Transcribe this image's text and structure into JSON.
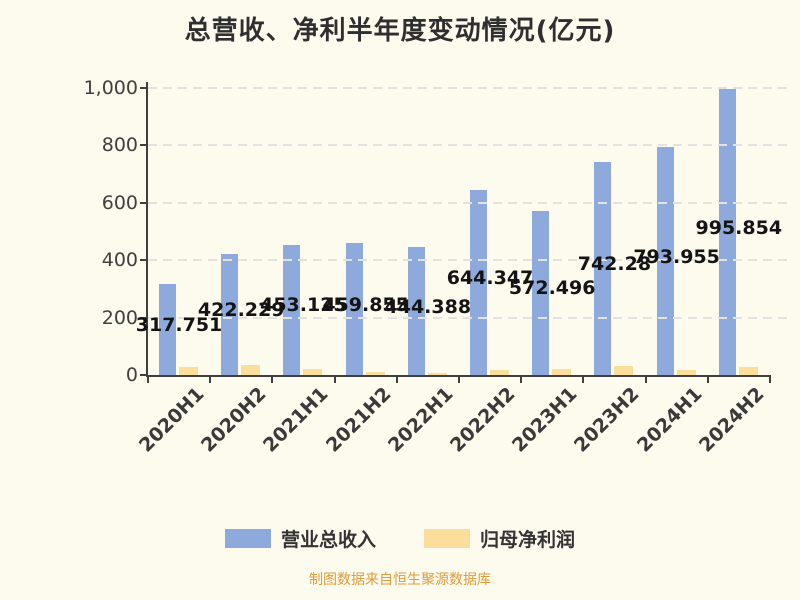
{
  "title": "总营收、净利半年度变动情况(亿元)",
  "legend": {
    "revenue_label": "营业总收入",
    "profit_label": "归母净利润"
  },
  "footer": {
    "source_note": "制图数据来自恒生聚源数据库"
  },
  "colors": {
    "background": "#FDFAEE",
    "revenue_bar": "#8EA9DB",
    "profit_bar": "#FBDD9C",
    "axis": "#3F3F3F",
    "gridline": "#E2E2E0",
    "value_label_text": "#141414",
    "footer_text": "#E09C3C"
  },
  "chart_data": {
    "type": "bar",
    "title": "总营收、净利半年度变动情况(亿元)",
    "categories": [
      "2020H1",
      "2020H2",
      "2021H1",
      "2021H2",
      "2022H1",
      "2022H2",
      "2023H1",
      "2023H2",
      "2024H1",
      "2024H2"
    ],
    "series": [
      {
        "name": "营业总收入",
        "color": "#8EA9DB",
        "values": [
          317.751,
          422.229,
          453.125,
          459.855,
          444.388,
          644.347,
          572.496,
          742.28,
          793.955,
          995.854
        ],
        "data_labels": [
          "317.751",
          "422.229",
          "453.125",
          "459.855",
          "444.388",
          "644.347",
          "572.496",
          "742.28",
          "793.955",
          "995.854"
        ]
      },
      {
        "name": "归母净利润",
        "color": "#FBDD9C",
        "estimated": true,
        "values": [
          28,
          35,
          21,
          12,
          7,
          16,
          20,
          30,
          18,
          29
        ]
      }
    ],
    "xlabel": "",
    "ylabel": "",
    "ylim": [
      0,
      1000
    ],
    "ytick_labels": [
      "0",
      "200",
      "400",
      "600",
      "800",
      "1,000"
    ],
    "grid": "horizontal-dashed",
    "legend_position": "bottom"
  }
}
